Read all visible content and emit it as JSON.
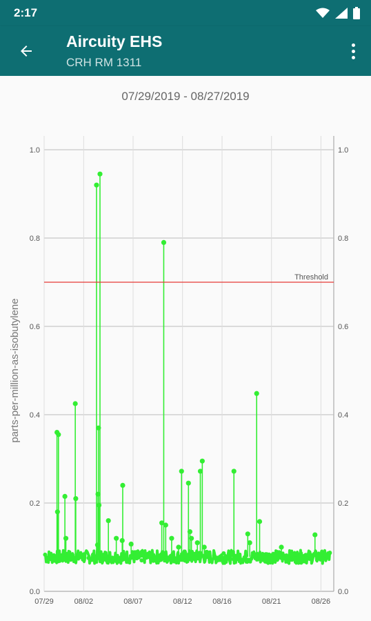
{
  "status_bar": {
    "time": "2:17",
    "icons": [
      "wifi-icon",
      "signal-icon",
      "battery-icon"
    ]
  },
  "app_bar": {
    "title": "Aircuity EHS",
    "subtitle": "CRH RM 1311",
    "back_icon": "arrow-back-icon",
    "menu_icon": "more-vert-icon",
    "color": "#0e6e72"
  },
  "date_range": "07/29/2019 - 08/27/2019",
  "chart_data": {
    "type": "line",
    "ylabel": "parts-per-million-as-isobutylene",
    "ylim": [
      0.0,
      1.0
    ],
    "y_ticks": [
      "0.0",
      "0.2",
      "0.4",
      "0.6",
      "0.8",
      "1.0"
    ],
    "x_ticks": [
      "07/29",
      "08/02",
      "08/07",
      "08/12",
      "08/16",
      "08/21",
      "08/26"
    ],
    "x_tick_days": [
      0,
      4,
      9,
      14,
      18,
      23,
      28
    ],
    "xlim_days": [
      0,
      29.3
    ],
    "baseline": 0.078,
    "threshold": {
      "label": "Threshold",
      "value": 0.7,
      "color": "#e53935"
    },
    "series_color": "#33ee33",
    "spikes": [
      {
        "day": 1.3,
        "value": 0.36
      },
      {
        "day": 1.45,
        "value": 0.355
      },
      {
        "day": 1.35,
        "value": 0.18
      },
      {
        "day": 2.1,
        "value": 0.215
      },
      {
        "day": 2.2,
        "value": 0.12
      },
      {
        "day": 3.15,
        "value": 0.425
      },
      {
        "day": 3.2,
        "value": 0.21
      },
      {
        "day": 5.3,
        "value": 0.92
      },
      {
        "day": 5.65,
        "value": 0.945
      },
      {
        "day": 5.5,
        "value": 0.37
      },
      {
        "day": 5.45,
        "value": 0.22
      },
      {
        "day": 5.55,
        "value": 0.195
      },
      {
        "day": 5.4,
        "value": 0.105
      },
      {
        "day": 6.5,
        "value": 0.16
      },
      {
        "day": 7.3,
        "value": 0.12
      },
      {
        "day": 7.95,
        "value": 0.24
      },
      {
        "day": 7.9,
        "value": 0.115
      },
      {
        "day": 8.8,
        "value": 0.107
      },
      {
        "day": 11.9,
        "value": 0.155
      },
      {
        "day": 12.1,
        "value": 0.79
      },
      {
        "day": 12.3,
        "value": 0.15
      },
      {
        "day": 12.9,
        "value": 0.12
      },
      {
        "day": 13.6,
        "value": 0.1
      },
      {
        "day": 13.9,
        "value": 0.272
      },
      {
        "day": 14.6,
        "value": 0.245
      },
      {
        "day": 14.75,
        "value": 0.135
      },
      {
        "day": 14.9,
        "value": 0.12
      },
      {
        "day": 15.5,
        "value": 0.11
      },
      {
        "day": 15.8,
        "value": 0.272
      },
      {
        "day": 16.0,
        "value": 0.295
      },
      {
        "day": 16.2,
        "value": 0.1
      },
      {
        "day": 19.2,
        "value": 0.272
      },
      {
        "day": 20.6,
        "value": 0.13
      },
      {
        "day": 20.8,
        "value": 0.11
      },
      {
        "day": 21.5,
        "value": 0.448
      },
      {
        "day": 21.8,
        "value": 0.158
      },
      {
        "day": 24.0,
        "value": 0.1
      },
      {
        "day": 27.4,
        "value": 0.128
      }
    ]
  }
}
